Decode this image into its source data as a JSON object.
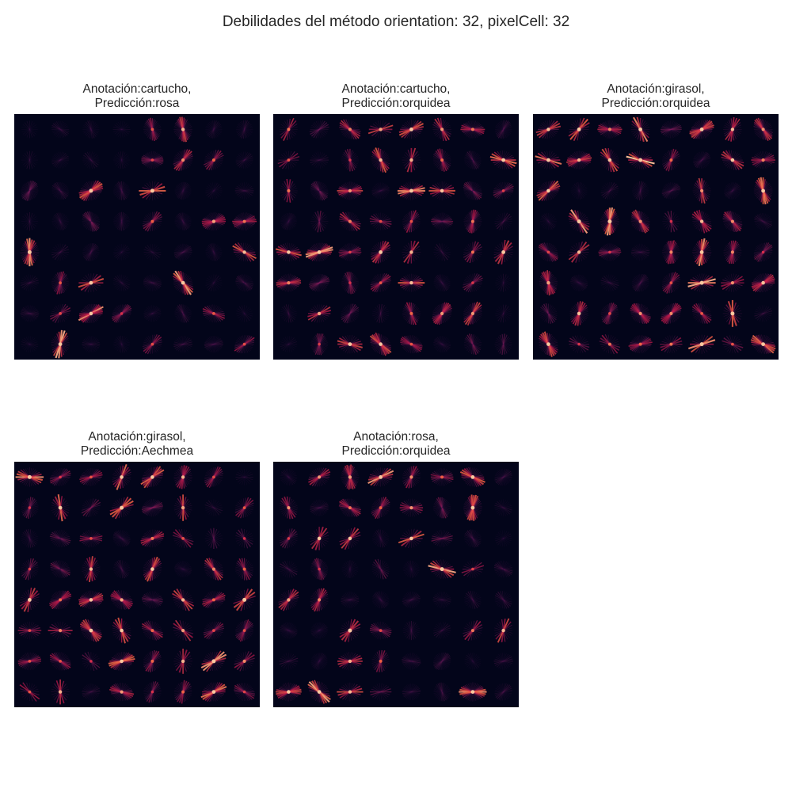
{
  "figure": {
    "title": "Debilidades del método orientation: 32, pixelCell: 32",
    "colormap": "rocket",
    "background_color": "#03051a",
    "grid_cells": 8
  },
  "panels": [
    {
      "annotation_line": "Anotación:cartucho,",
      "prediction_line": "Predicción:rosa",
      "image": "hog-visualization-1"
    },
    {
      "annotation_line": "Anotación:cartucho,",
      "prediction_line": "Predicción:orquidea",
      "image": "hog-visualization-2"
    },
    {
      "annotation_line": "Anotación:girasol,",
      "prediction_line": "Predicción:orquidea",
      "image": "hog-visualization-3"
    },
    {
      "annotation_line": "Anotación:girasol,",
      "prediction_line": "Predicción:Aechmea",
      "image": "hog-visualization-4"
    },
    {
      "annotation_line": "Anotación:rosa,",
      "prediction_line": "Predicción:orquidea",
      "image": "hog-visualization-5"
    }
  ]
}
